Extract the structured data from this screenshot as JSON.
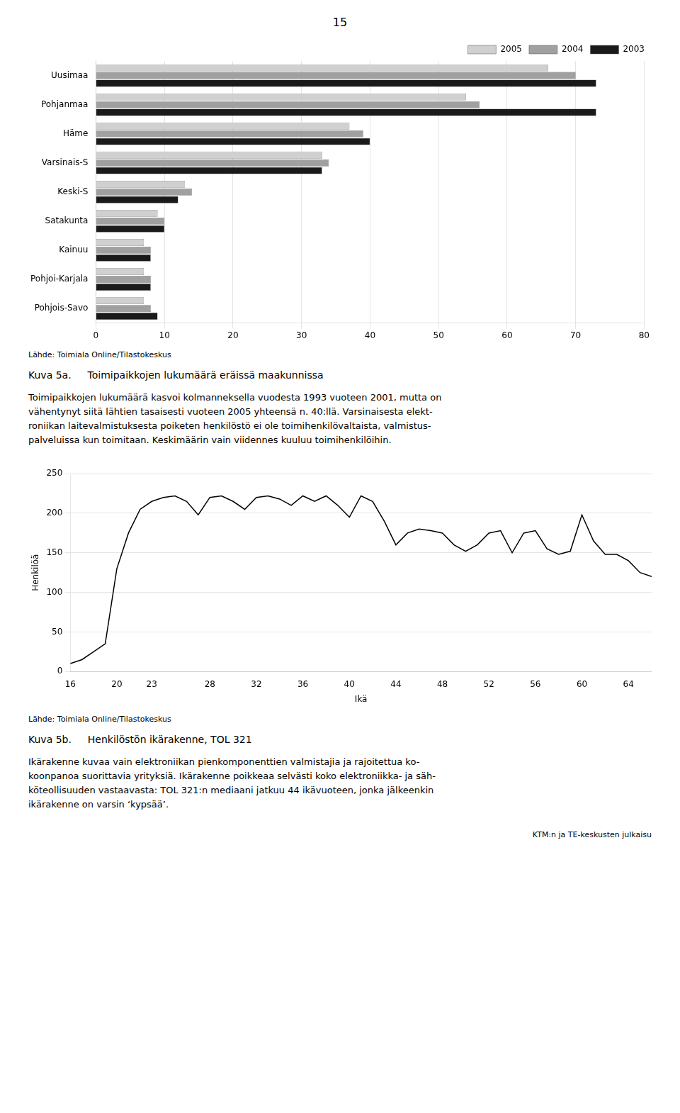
{
  "annotations": [
    "15",
    "KTM:n ja TE-keskusten julkaisu"
  ],
  "chart_data": [
    {
      "type": "bar",
      "orientation": "horizontal",
      "title": "Kuva 5a.   Toimipaikkojen lukumäärä eräissä maakunnissa",
      "annotations": [
        "Lähde: Toimiala Online/Tilastokeskus",
        "Toimipaikkojen lukumäärä kasvoi kolmanneksella vuodesta 1993 vuoteen 2001, mutta on\nvähentynyt siitä lähtien tasaisesti vuoteen 2005 yhteensä n. 40:llä. Varsinaisesta elekt-\nroniikan laitevalmistuksesta poiketen henkilöstö ei ole toimihenkilövaltaista, valmistus-\npalveluissa kun toimitaan. Keskimäärin vain viidennes kuuluu toimihenkilöihin."
      ],
      "categories": [
        "Uusimaa",
        "Pohjanmaa",
        "Häme",
        "Varsinais-S",
        "Keski-S",
        "Satakunta",
        "Kainuu",
        "Pohjoi-Karjala",
        "Pohjois-Savo"
      ],
      "series": [
        {
          "name": "2005",
          "color": "#d0d0d0",
          "values": [
            66,
            54,
            37,
            33,
            13,
            9,
            7,
            7,
            7
          ]
        },
        {
          "name": "2004",
          "color": "#a0a0a0",
          "values": [
            70,
            56,
            39,
            34,
            14,
            10,
            8,
            8,
            8
          ]
        },
        {
          "name": "2003",
          "color": "#1a1a1a",
          "values": [
            73,
            73,
            40,
            33,
            12,
            10,
            8,
            8,
            9
          ]
        }
      ],
      "xlim": [
        0,
        80
      ],
      "xticks": [
        0,
        10,
        20,
        30,
        40,
        50,
        60,
        70,
        80
      ],
      "grid": "x",
      "legend": "upper right"
    },
    {
      "type": "line",
      "title": "Kuva 5b.   Henkilöstön ikärakenne, TOL 321",
      "annotations": [
        "Lähde: Toimiala Online/Tilastokeskus",
        "Ikärakenne kuvaa vain elektroniikan pienkomponenttien valmistajia ja rajoitettua ko-\nkoonpanoa suorittavia yrityksiä. Ikärakenne poikkeaa selvästi koko elektroniikka- ja säh-\nköteollisuuden vastaavasta: TOL 321:n mediaani jatkuu 44 ikävuoteen, jonka jälkeenkin\nikärakenne on varsin ‘kypsää’."
      ],
      "x": [
        16,
        17,
        18,
        19,
        20,
        21,
        22,
        23,
        24,
        25,
        26,
        27,
        28,
        29,
        30,
        31,
        32,
        33,
        34,
        35,
        36,
        37,
        38,
        39,
        40,
        41,
        42,
        43,
        44,
        45,
        46,
        47,
        48,
        49,
        50,
        51,
        52,
        53,
        54,
        55,
        56,
        57,
        58,
        59,
        60,
        61,
        62,
        63,
        64,
        65,
        66
      ],
      "values": [
        10,
        15,
        25,
        35,
        130,
        175,
        205,
        215,
        220,
        222,
        215,
        198,
        220,
        222,
        215,
        205,
        220,
        222,
        218,
        210,
        222,
        215,
        222,
        210,
        195,
        222,
        215,
        190,
        160,
        175,
        180,
        178,
        175,
        160,
        152,
        160,
        175,
        178,
        150,
        175,
        178,
        155,
        148,
        152,
        198,
        165,
        148,
        148,
        140,
        125,
        120
      ],
      "color": "#000000",
      "xlabel": "Ikä",
      "ylabel": "Henkilöä",
      "xlim": [
        16,
        66
      ],
      "xticks": [
        16,
        20,
        23,
        28,
        32,
        36,
        40,
        44,
        48,
        52,
        56,
        60,
        64
      ],
      "ylim": [
        0,
        250
      ],
      "yticks": [
        0,
        50,
        100,
        150,
        200,
        250
      ],
      "grid": "y"
    }
  ]
}
